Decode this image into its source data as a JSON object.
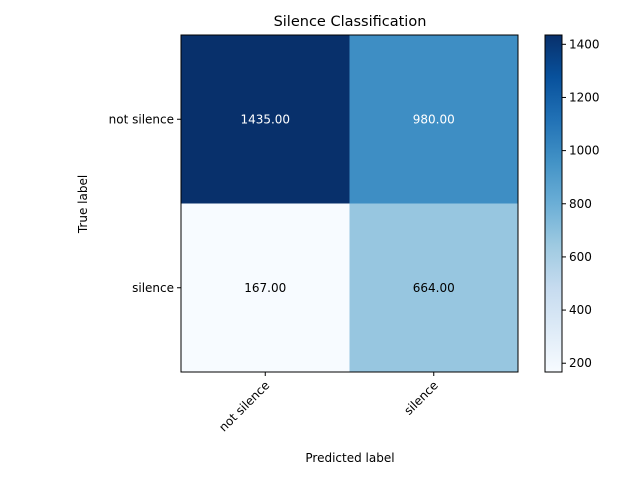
{
  "chart_data": {
    "type": "heatmap",
    "title": "Silence Classification",
    "xlabel": "Predicted label",
    "ylabel": "True label",
    "x_categories": [
      "not silence",
      "silence"
    ],
    "y_categories": [
      "not silence",
      "silence"
    ],
    "values": [
      [
        1435.0,
        980.0
      ],
      [
        167.0,
        664.0
      ]
    ],
    "value_labels": [
      [
        "1435.00",
        "980.00"
      ],
      [
        "167.00",
        "664.00"
      ]
    ],
    "colormap": "Blues",
    "vmin": 167,
    "vmax": 1435,
    "colorbar_ticks": [
      200,
      400,
      600,
      800,
      1000,
      1200,
      1400
    ],
    "colorbar_tick_labels": [
      "200",
      "400",
      "600",
      "800",
      "1000",
      "1200",
      "1400"
    ],
    "grid": false
  }
}
